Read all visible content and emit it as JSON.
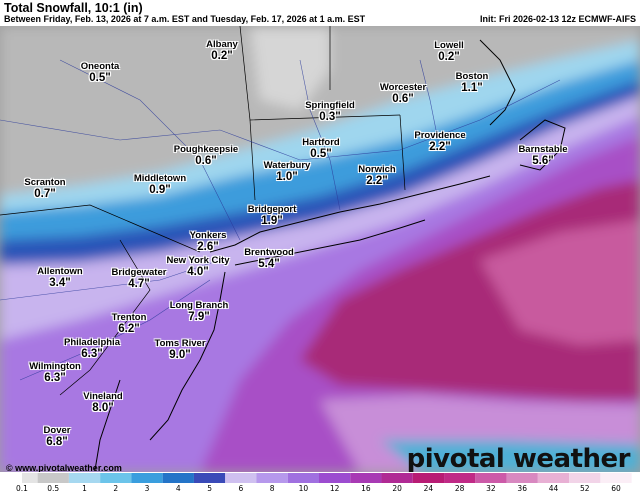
{
  "header": {
    "title": "Total Snowfall, 10:1 (in)",
    "subtitle": "Between Friday, Feb. 13, 2026 at 7 a.m. EST and Tuesday, Feb. 17, 2026 at 1 a.m. EST",
    "init": "Init: Fri 2026-02-13 12z ECMWF-AIFS"
  },
  "cities": [
    {
      "name": "Albany",
      "value": "0.2\""
    },
    {
      "name": "Lowell",
      "value": "0.2\""
    },
    {
      "name": "Oneonta",
      "value": "0.5\""
    },
    {
      "name": "Boston",
      "value": "1.1\""
    },
    {
      "name": "Worcester",
      "value": "0.6\""
    },
    {
      "name": "Springfield",
      "value": "0.3\""
    },
    {
      "name": "Hartford",
      "value": "0.5\""
    },
    {
      "name": "Providence",
      "value": "2.2\""
    },
    {
      "name": "Poughkeepsie",
      "value": "0.6\""
    },
    {
      "name": "Barnstable",
      "value": "5.6\""
    },
    {
      "name": "Waterbury",
      "value": "1.0\""
    },
    {
      "name": "Norwich",
      "value": "2.2\""
    },
    {
      "name": "Middletown",
      "value": "0.9\""
    },
    {
      "name": "Scranton",
      "value": "0.7\""
    },
    {
      "name": "Bridgeport",
      "value": "1.9\""
    },
    {
      "name": "Yonkers",
      "value": "2.6\""
    },
    {
      "name": "Brentwood",
      "value": "5.4\""
    },
    {
      "name": "New York City",
      "value": "4.0\""
    },
    {
      "name": "Allentown",
      "value": "3.4\""
    },
    {
      "name": "Bridgewater",
      "value": "4.7\""
    },
    {
      "name": "Long Branch",
      "value": "7.9\""
    },
    {
      "name": "Trenton",
      "value": "6.2\""
    },
    {
      "name": "Philadelphia",
      "value": "6.3\""
    },
    {
      "name": "Toms River",
      "value": "9.0\""
    },
    {
      "name": "Wilmington",
      "value": "6.3\""
    },
    {
      "name": "Vineland",
      "value": "8.0\""
    },
    {
      "name": "Dover",
      "value": "6.8\""
    }
  ],
  "colorbar": {
    "ticks": [
      "0.1",
      "0.5",
      "1",
      "2",
      "3",
      "4",
      "5",
      "6",
      "8",
      "10",
      "12",
      "16",
      "20",
      "24",
      "28",
      "32",
      "36",
      "44",
      "52",
      "60"
    ],
    "colors": [
      "#e4e4e4",
      "#c8c8c8",
      "#a6d8f0",
      "#6cc4ea",
      "#3a9ede",
      "#2474c8",
      "#3a4ab8",
      "#cfc0f0",
      "#b698ec",
      "#a070e0",
      "#9c4cd0",
      "#a83ab4",
      "#b02a94",
      "#b81c74",
      "#c02a86",
      "#cc5aa8",
      "#d888c0",
      "#e8b0d4",
      "#f2d4e8",
      "#fbeef6"
    ]
  },
  "watermark": "© www.pivotalweather.com",
  "brand": "pivotal weather"
}
